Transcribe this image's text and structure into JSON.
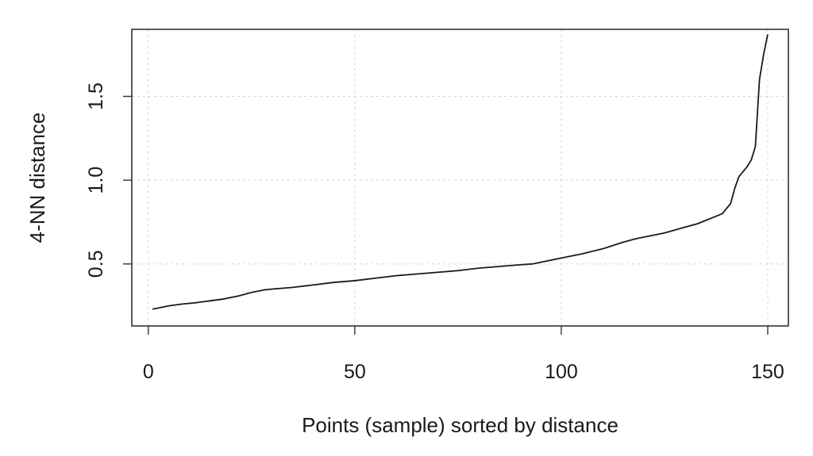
{
  "chart_data": {
    "type": "line",
    "title": "",
    "xlabel": "Points (sample) sorted by distance",
    "ylabel": "4-NN distance",
    "xlim": [
      -4,
      155
    ],
    "ylim": [
      0.13,
      1.9
    ],
    "xticks": [
      0,
      50,
      100,
      150
    ],
    "xtick_labels": [
      "0",
      "50",
      "100",
      "150"
    ],
    "yticks": [
      0.5,
      1.0,
      1.5
    ],
    "ytick_labels": [
      "0.5",
      "1.0",
      "1.5"
    ],
    "grid": true,
    "legend": "none",
    "series": [
      {
        "color": "#1a1a1a",
        "x": [
          1,
          3,
          5,
          8,
          10,
          12,
          15,
          18,
          20,
          22,
          25,
          28,
          30,
          35,
          40,
          45,
          50,
          55,
          60,
          65,
          70,
          75,
          80,
          85,
          90,
          93,
          95,
          100,
          105,
          110,
          115,
          118,
          120,
          125,
          130,
          133,
          135,
          137,
          139,
          140,
          141,
          142,
          143,
          144,
          145,
          146,
          147,
          148,
          149,
          150
        ],
        "values": [
          0.23,
          0.24,
          0.25,
          0.26,
          0.265,
          0.27,
          0.28,
          0.29,
          0.3,
          0.31,
          0.33,
          0.345,
          0.35,
          0.36,
          0.375,
          0.39,
          0.4,
          0.415,
          0.43,
          0.44,
          0.45,
          0.46,
          0.475,
          0.485,
          0.495,
          0.5,
          0.51,
          0.535,
          0.56,
          0.59,
          0.63,
          0.65,
          0.66,
          0.685,
          0.72,
          0.74,
          0.76,
          0.78,
          0.8,
          0.83,
          0.86,
          0.95,
          1.02,
          1.05,
          1.08,
          1.12,
          1.2,
          1.6,
          1.75,
          1.87
        ]
      }
    ]
  }
}
